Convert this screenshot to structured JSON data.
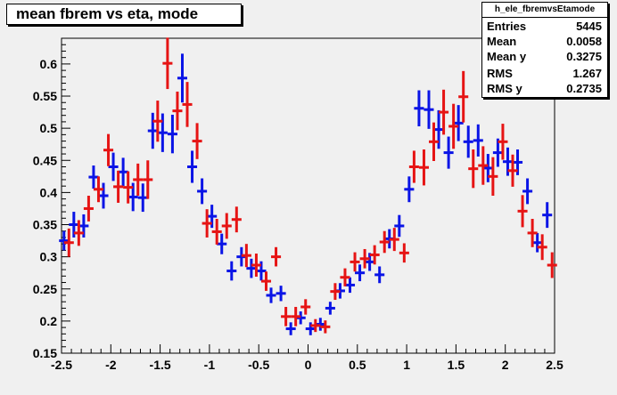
{
  "title": "mean fbrem vs eta, mode",
  "stats": {
    "name": "h_ele_fbremvsEtamode",
    "rows": [
      {
        "label": "Entries",
        "value": "5445"
      },
      {
        "label": "Mean",
        "value": "0.0058"
      },
      {
        "label": "Mean y",
        "value": "0.3275"
      },
      {
        "label": "RMS",
        "value": "1.267"
      },
      {
        "label": "RMS y",
        "value": "0.2735"
      }
    ]
  },
  "chart_data": {
    "type": "scatter",
    "title": "mean fbrem vs eta, mode",
    "xlim": [
      -2.5,
      2.5
    ],
    "ylim": [
      0.15,
      0.64
    ],
    "x_ticks": [
      "-2.5",
      "-2",
      "-1.5",
      "-1",
      "-0.5",
      "0",
      "0.5",
      "1",
      "1.5",
      "2",
      "2.5"
    ],
    "y_ticks": [
      "0.15",
      "0.2",
      "0.25",
      "0.3",
      "0.35",
      "0.4",
      "0.45",
      "0.5",
      "0.55",
      "0.6"
    ],
    "grid": false,
    "series": [
      {
        "color": "#0a14e6",
        "points": [
          {
            "x": -2.475,
            "y": 0.325,
            "err": 0.015
          },
          {
            "x": -2.375,
            "y": 0.35,
            "err": 0.02
          },
          {
            "x": -2.275,
            "y": 0.348,
            "err": 0.018
          },
          {
            "x": -2.175,
            "y": 0.424,
            "err": 0.018
          },
          {
            "x": -2.075,
            "y": 0.395,
            "err": 0.02
          },
          {
            "x": -1.975,
            "y": 0.44,
            "err": 0.022
          },
          {
            "x": -1.875,
            "y": 0.432,
            "err": 0.022
          },
          {
            "x": -1.775,
            "y": 0.393,
            "err": 0.022
          },
          {
            "x": -1.675,
            "y": 0.392,
            "err": 0.022
          },
          {
            "x": -1.575,
            "y": 0.496,
            "err": 0.028
          },
          {
            "x": -1.475,
            "y": 0.493,
            "err": 0.03
          },
          {
            "x": -1.375,
            "y": 0.491,
            "err": 0.03
          },
          {
            "x": -1.275,
            "y": 0.578,
            "err": 0.038
          },
          {
            "x": -1.175,
            "y": 0.44,
            "err": 0.025
          },
          {
            "x": -1.075,
            "y": 0.402,
            "err": 0.02
          },
          {
            "x": -0.975,
            "y": 0.363,
            "err": 0.018
          },
          {
            "x": -0.875,
            "y": 0.32,
            "err": 0.016
          },
          {
            "x": -0.775,
            "y": 0.278,
            "err": 0.015
          },
          {
            "x": -0.675,
            "y": 0.3,
            "err": 0.015
          },
          {
            "x": -0.575,
            "y": 0.282,
            "err": 0.015
          },
          {
            "x": -0.475,
            "y": 0.278,
            "err": 0.015
          },
          {
            "x": -0.375,
            "y": 0.24,
            "err": 0.012
          },
          {
            "x": -0.275,
            "y": 0.243,
            "err": 0.012
          },
          {
            "x": -0.175,
            "y": 0.188,
            "err": 0.01
          },
          {
            "x": -0.075,
            "y": 0.205,
            "err": 0.01
          },
          {
            "x": 0.025,
            "y": 0.188,
            "err": 0.01
          },
          {
            "x": 0.125,
            "y": 0.195,
            "err": 0.01
          },
          {
            "x": 0.225,
            "y": 0.22,
            "err": 0.01
          },
          {
            "x": 0.325,
            "y": 0.247,
            "err": 0.012
          },
          {
            "x": 0.425,
            "y": 0.256,
            "err": 0.012
          },
          {
            "x": 0.525,
            "y": 0.275,
            "err": 0.013
          },
          {
            "x": 0.625,
            "y": 0.292,
            "err": 0.014
          },
          {
            "x": 0.725,
            "y": 0.272,
            "err": 0.013
          },
          {
            "x": 0.825,
            "y": 0.328,
            "err": 0.015
          },
          {
            "x": 0.925,
            "y": 0.348,
            "err": 0.017
          },
          {
            "x": 1.025,
            "y": 0.405,
            "err": 0.02
          },
          {
            "x": 1.125,
            "y": 0.531,
            "err": 0.028
          },
          {
            "x": 1.225,
            "y": 0.529,
            "err": 0.03
          },
          {
            "x": 1.325,
            "y": 0.498,
            "err": 0.03
          },
          {
            "x": 1.425,
            "y": 0.462,
            "err": 0.025
          },
          {
            "x": 1.525,
            "y": 0.508,
            "err": 0.028
          },
          {
            "x": 1.625,
            "y": 0.479,
            "err": 0.025
          },
          {
            "x": 1.725,
            "y": 0.481,
            "err": 0.025
          },
          {
            "x": 1.825,
            "y": 0.438,
            "err": 0.022
          },
          {
            "x": 1.925,
            "y": 0.462,
            "err": 0.022
          },
          {
            "x": 2.025,
            "y": 0.448,
            "err": 0.022
          },
          {
            "x": 2.125,
            "y": 0.447,
            "err": 0.02
          },
          {
            "x": 2.225,
            "y": 0.402,
            "err": 0.02
          },
          {
            "x": 2.325,
            "y": 0.322,
            "err": 0.015
          },
          {
            "x": 2.425,
            "y": 0.365,
            "err": 0.02
          }
        ]
      },
      {
        "color": "#e61414",
        "points": [
          {
            "x": -2.425,
            "y": 0.322,
            "err": 0.022
          },
          {
            "x": -2.325,
            "y": 0.337,
            "err": 0.02
          },
          {
            "x": -2.225,
            "y": 0.375,
            "err": 0.02
          },
          {
            "x": -2.125,
            "y": 0.405,
            "err": 0.02
          },
          {
            "x": -2.025,
            "y": 0.466,
            "err": 0.025
          },
          {
            "x": -1.925,
            "y": 0.409,
            "err": 0.025
          },
          {
            "x": -1.825,
            "y": 0.408,
            "err": 0.025
          },
          {
            "x": -1.725,
            "y": 0.42,
            "err": 0.025
          },
          {
            "x": -1.625,
            "y": 0.42,
            "err": 0.03
          },
          {
            "x": -1.525,
            "y": 0.511,
            "err": 0.032
          },
          {
            "x": -1.425,
            "y": 0.601,
            "err": 0.04
          },
          {
            "x": -1.325,
            "y": 0.527,
            "err": 0.03
          },
          {
            "x": -1.225,
            "y": 0.537,
            "err": 0.035
          },
          {
            "x": -1.125,
            "y": 0.48,
            "err": 0.028
          },
          {
            "x": -1.025,
            "y": 0.352,
            "err": 0.022
          },
          {
            "x": -0.925,
            "y": 0.339,
            "err": 0.02
          },
          {
            "x": -0.825,
            "y": 0.348,
            "err": 0.02
          },
          {
            "x": -0.725,
            "y": 0.358,
            "err": 0.02
          },
          {
            "x": -0.625,
            "y": 0.302,
            "err": 0.018
          },
          {
            "x": -0.525,
            "y": 0.287,
            "err": 0.018
          },
          {
            "x": -0.425,
            "y": 0.262,
            "err": 0.015
          },
          {
            "x": -0.325,
            "y": 0.3,
            "err": 0.015
          },
          {
            "x": -0.225,
            "y": 0.207,
            "err": 0.015
          },
          {
            "x": -0.125,
            "y": 0.207,
            "err": 0.015
          },
          {
            "x": -0.025,
            "y": 0.222,
            "err": 0.012
          },
          {
            "x": 0.075,
            "y": 0.193,
            "err": 0.01
          },
          {
            "x": 0.175,
            "y": 0.191,
            "err": 0.01
          },
          {
            "x": 0.275,
            "y": 0.246,
            "err": 0.013
          },
          {
            "x": 0.375,
            "y": 0.268,
            "err": 0.014
          },
          {
            "x": 0.475,
            "y": 0.292,
            "err": 0.015
          },
          {
            "x": 0.575,
            "y": 0.297,
            "err": 0.015
          },
          {
            "x": 0.675,
            "y": 0.303,
            "err": 0.015
          },
          {
            "x": 0.775,
            "y": 0.323,
            "err": 0.017
          },
          {
            "x": 0.875,
            "y": 0.327,
            "err": 0.018
          },
          {
            "x": 0.975,
            "y": 0.306,
            "err": 0.015
          },
          {
            "x": 1.075,
            "y": 0.44,
            "err": 0.025
          },
          {
            "x": 1.175,
            "y": 0.439,
            "err": 0.028
          },
          {
            "x": 1.275,
            "y": 0.479,
            "err": 0.03
          },
          {
            "x": 1.375,
            "y": 0.525,
            "err": 0.035
          },
          {
            "x": 1.475,
            "y": 0.503,
            "err": 0.035
          },
          {
            "x": 1.575,
            "y": 0.549,
            "err": 0.04
          },
          {
            "x": 1.675,
            "y": 0.437,
            "err": 0.03
          },
          {
            "x": 1.775,
            "y": 0.442,
            "err": 0.03
          },
          {
            "x": 1.875,
            "y": 0.425,
            "err": 0.03
          },
          {
            "x": 1.975,
            "y": 0.479,
            "err": 0.028
          },
          {
            "x": 2.075,
            "y": 0.434,
            "err": 0.025
          },
          {
            "x": 2.175,
            "y": 0.371,
            "err": 0.025
          },
          {
            "x": 2.275,
            "y": 0.337,
            "err": 0.022
          },
          {
            "x": 2.375,
            "y": 0.315,
            "err": 0.02
          },
          {
            "x": 2.475,
            "y": 0.287,
            "err": 0.02
          }
        ]
      }
    ]
  }
}
